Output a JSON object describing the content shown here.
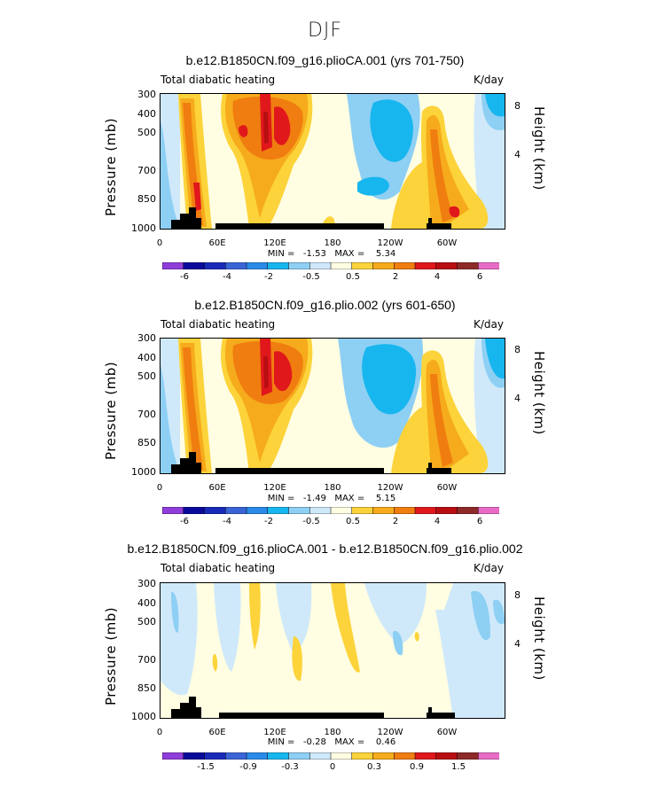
{
  "figure_title": "DJF",
  "chart_data": [
    {
      "type": "heatmap",
      "title": "b.e12.B1850CN.f09_g16.plioCA.001 (yrs 701-750)",
      "variable": "Total diabatic heating",
      "units": "K/day",
      "ylabel": "Pressure (mb)",
      "ylabel_right": "Height (km)",
      "y_ticks": [
        "300",
        "400",
        "500",
        "700",
        "850",
        "1000"
      ],
      "y_right_ticks": [
        "8",
        "4"
      ],
      "x_ticks": [
        "0",
        "60E",
        "120E",
        "180",
        "120W",
        "60W"
      ],
      "stats": "MIN =   -1.53   MAX =    5.34",
      "min": -1.53,
      "max": 5.34,
      "colorbar_labels": [
        "-6",
        "-4",
        "-2",
        "-0.5",
        "0.5",
        "2",
        "4",
        "6"
      ]
    },
    {
      "type": "heatmap",
      "title": "b.e12.B1850CN.f09_g16.plio.002 (yrs 601-650)",
      "variable": "Total diabatic heating",
      "units": "K/day",
      "ylabel": "Pressure (mb)",
      "ylabel_right": "Height (km)",
      "y_ticks": [
        "300",
        "400",
        "500",
        "700",
        "850",
        "1000"
      ],
      "y_right_ticks": [
        "8",
        "4"
      ],
      "x_ticks": [
        "0",
        "60E",
        "120E",
        "180",
        "120W",
        "60W"
      ],
      "stats": "MIN =   -1.49   MAX =    5.15",
      "min": -1.49,
      "max": 5.15,
      "colorbar_labels": [
        "-6",
        "-4",
        "-2",
        "-0.5",
        "0.5",
        "2",
        "4",
        "6"
      ]
    },
    {
      "type": "heatmap",
      "title": "b.e12.B1850CN.f09_g16.plioCA.001 - b.e12.B1850CN.f09_g16.plio.002",
      "variable": "Total diabatic heating",
      "units": "K/day",
      "ylabel": "Pressure (mb)",
      "ylabel_right": "Height (km)",
      "y_ticks": [
        "300",
        "400",
        "500",
        "700",
        "850",
        "1000"
      ],
      "y_right_ticks": [
        "8",
        "4"
      ],
      "x_ticks": [
        "0",
        "60E",
        "120E",
        "180",
        "120W",
        "60W"
      ],
      "stats": "MIN =   -0.28   MAX =    0.46",
      "min": -0.28,
      "max": 0.46,
      "colorbar_labels": [
        "-1.5",
        "-0.9",
        "-0.3",
        "0",
        "0.3",
        "0.9",
        "1.5"
      ]
    }
  ],
  "colors": {
    "palette": [
      "#8f3ddb",
      "#0a0a9a",
      "#1a2ab8",
      "#3a64d6",
      "#2a8ae8",
      "#18b6ee",
      "#8ecff4",
      "#cfe9fa",
      "#fffde2",
      "#fcd33a",
      "#f6ab1c",
      "#f07d10",
      "#e0181c",
      "#b80e12",
      "#8e2a28",
      "#e86cc6"
    ],
    "topography": "#000000"
  }
}
